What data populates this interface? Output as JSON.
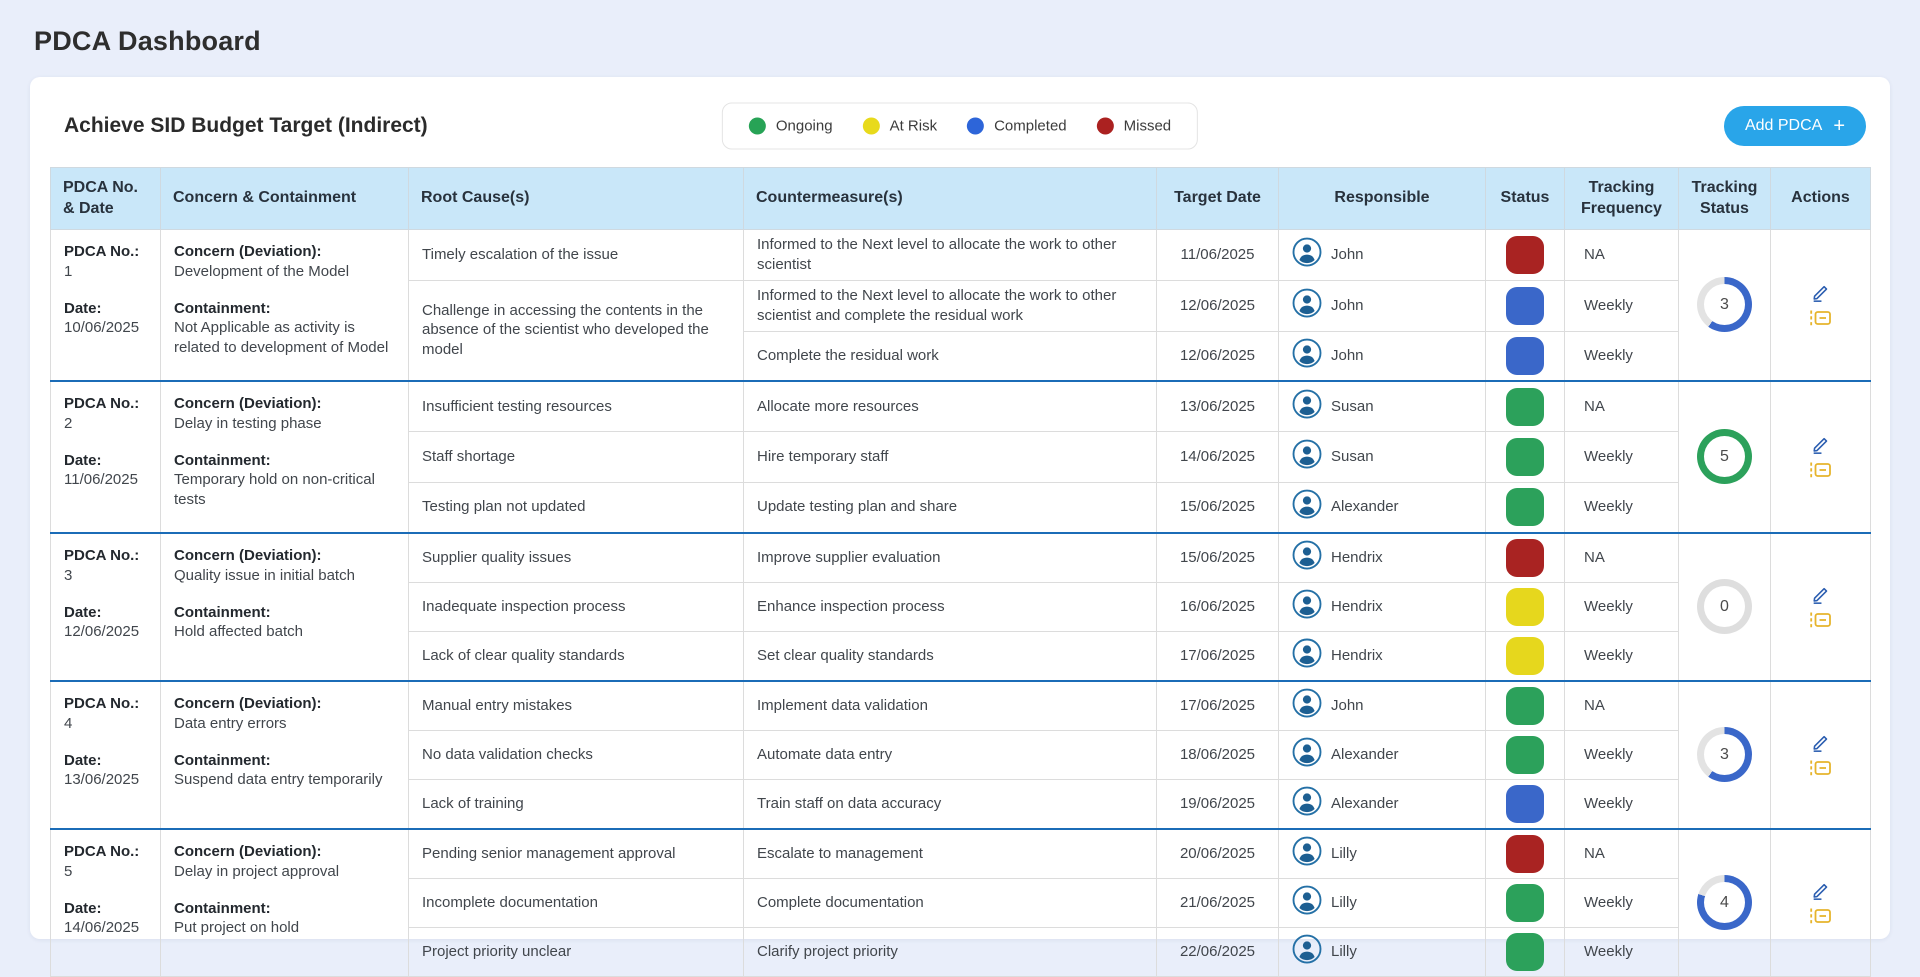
{
  "page": {
    "title": "PDCA Dashboard"
  },
  "card": {
    "title": "Achieve SID Budget Target (Indirect)",
    "legend": [
      {
        "label": "Ongoing",
        "color": "#27a356"
      },
      {
        "label": "At Risk",
        "color": "#e8da1c"
      },
      {
        "label": "Completed",
        "color": "#2d65d9"
      },
      {
        "label": "Missed",
        "color": "#ab2120"
      }
    ],
    "add_button": {
      "label": "Add PDCA",
      "icon": "+",
      "color": "#29a5e9"
    }
  },
  "status_colors": {
    "ongoing": "#2ca15b",
    "at_risk": "#e6d71d",
    "completed": "#3a67c9",
    "missed": "#a92322"
  },
  "action_colors": {
    "edit": "#2a5db0",
    "log": "#e6b42c"
  },
  "icons": {
    "edit": "pencil-icon",
    "log": "tracking-log-icon",
    "person": "person-icon",
    "plus": "plus-icon"
  },
  "table": {
    "headers": [
      "PDCA No. & Date",
      "Concern & Containment",
      "Root Cause(s)",
      "Countermeasure(s)",
      "Target Date",
      "Responsible",
      "Status",
      "Tracking Frequency",
      "Tracking Status",
      "Actions"
    ],
    "groups": [
      {
        "pdca_no_label": "PDCA No.:",
        "pdca_no": "1",
        "date_label": "Date:",
        "date": "10/06/2025",
        "concern_label": "Concern (Deviation):",
        "concern": "Development of the Model",
        "containment_label": "Containment:",
        "containment": "Not Applicable as activity is related to development of Model",
        "rows": [
          {
            "root_cause": "Timely escalation of the issue",
            "rc_span": 1,
            "countermeasure": "Informed to the Next level to allocate the work to other scientist",
            "target_date": "11/06/2025",
            "responsible": "John",
            "status": "missed",
            "frequency": "NA"
          },
          {
            "root_cause": "Challenge in accessing the contents in the absence of the scientist who developed the model",
            "rc_span": 2,
            "countermeasure": "Informed to the Next level to allocate the work to other scientist and complete the residual work",
            "target_date": "12/06/2025",
            "responsible": "John",
            "status": "completed",
            "frequency": "Weekly"
          },
          {
            "root_cause": null,
            "rc_span": 0,
            "countermeasure": "Complete the residual work",
            "target_date": "12/06/2025",
            "responsible": "John",
            "status": "completed",
            "frequency": "Weekly"
          }
        ],
        "tracking": {
          "value": "3",
          "fraction": 0.6,
          "color": "#3a67c9",
          "track": "#e3e3e3"
        }
      },
      {
        "pdca_no_label": "PDCA No.:",
        "pdca_no": "2",
        "date_label": "Date:",
        "date": "11/06/2025",
        "concern_label": "Concern (Deviation):",
        "concern": "Delay in testing phase",
        "containment_label": "Containment:",
        "containment": "Temporary hold on non-critical tests",
        "rows": [
          {
            "root_cause": "Insufficient testing resources",
            "rc_span": 1,
            "countermeasure": "Allocate more resources",
            "target_date": "13/06/2025",
            "responsible": "Susan",
            "status": "ongoing",
            "frequency": "NA"
          },
          {
            "root_cause": "Staff shortage",
            "rc_span": 1,
            "countermeasure": "Hire temporary staff",
            "target_date": "14/06/2025",
            "responsible": "Susan",
            "status": "ongoing",
            "frequency": "Weekly"
          },
          {
            "root_cause": "Testing plan not updated",
            "rc_span": 1,
            "countermeasure": "Update testing plan and share",
            "target_date": "15/06/2025",
            "responsible": "Alexander",
            "status": "ongoing",
            "frequency": "Weekly"
          }
        ],
        "tracking": {
          "value": "5",
          "fraction": 1,
          "color": "#2ca15b",
          "track": "#e3e3e3"
        }
      },
      {
        "pdca_no_label": "PDCA No.:",
        "pdca_no": "3",
        "date_label": "Date:",
        "date": "12/06/2025",
        "concern_label": "Concern (Deviation):",
        "concern": "Quality issue in initial batch",
        "containment_label": "Containment:",
        "containment": "Hold affected batch",
        "rows": [
          {
            "root_cause": "Supplier quality issues",
            "rc_span": 1,
            "countermeasure": "Improve supplier evaluation",
            "target_date": "15/06/2025",
            "responsible": "Hendrix",
            "status": "missed",
            "frequency": "NA"
          },
          {
            "root_cause": "Inadequate inspection process",
            "rc_span": 1,
            "countermeasure": "Enhance inspection process",
            "target_date": "16/06/2025",
            "responsible": "Hendrix",
            "status": "at_risk",
            "frequency": "Weekly"
          },
          {
            "root_cause": "Lack of clear quality standards",
            "rc_span": 1,
            "countermeasure": "Set clear quality standards",
            "target_date": "17/06/2025",
            "responsible": "Hendrix",
            "status": "at_risk",
            "frequency": "Weekly"
          }
        ],
        "tracking": {
          "value": "0",
          "fraction": 0,
          "color": "#3a67c9",
          "track": "#dedede"
        }
      },
      {
        "pdca_no_label": "PDCA No.:",
        "pdca_no": "4",
        "date_label": "Date:",
        "date": "13/06/2025",
        "concern_label": "Concern (Deviation):",
        "concern": "Data entry errors",
        "containment_label": "Containment:",
        "containment": "Suspend data entry temporarily",
        "rows": [
          {
            "root_cause": "Manual entry mistakes",
            "rc_span": 1,
            "countermeasure": "Implement data validation",
            "target_date": "17/06/2025",
            "responsible": "John",
            "status": "ongoing",
            "frequency": "NA"
          },
          {
            "root_cause": "No data validation checks",
            "rc_span": 1,
            "countermeasure": "Automate data entry",
            "target_date": "18/06/2025",
            "responsible": "Alexander",
            "status": "ongoing",
            "frequency": "Weekly"
          },
          {
            "root_cause": "Lack of training",
            "rc_span": 1,
            "countermeasure": "Train staff on data accuracy",
            "target_date": "19/06/2025",
            "responsible": "Alexander",
            "status": "completed",
            "frequency": "Weekly"
          }
        ],
        "tracking": {
          "value": "3",
          "fraction": 0.6,
          "color": "#3a67c9",
          "track": "#e3e3e3"
        }
      },
      {
        "pdca_no_label": "PDCA No.:",
        "pdca_no": "5",
        "date_label": "Date:",
        "date": "14/06/2025",
        "concern_label": "Concern (Deviation):",
        "concern": "Delay in project approval",
        "containment_label": "Containment:",
        "containment": "Put project on hold",
        "rows": [
          {
            "root_cause": "Pending senior management approval",
            "rc_span": 1,
            "countermeasure": "Escalate to management",
            "target_date": "20/06/2025",
            "responsible": "Lilly",
            "status": "missed",
            "frequency": "NA"
          },
          {
            "root_cause": "Incomplete documentation",
            "rc_span": 1,
            "countermeasure": "Complete documentation",
            "target_date": "21/06/2025",
            "responsible": "Lilly",
            "status": "ongoing",
            "frequency": "Weekly"
          },
          {
            "root_cause": "Project priority unclear",
            "rc_span": 1,
            "countermeasure": "Clarify project priority",
            "target_date": "22/06/2025",
            "responsible": "Lilly",
            "status": "ongoing",
            "frequency": "Weekly"
          }
        ],
        "tracking": {
          "value": "4",
          "fraction": 0.8,
          "color": "#3a67c9",
          "track": "#e3e3e3"
        }
      }
    ]
  }
}
